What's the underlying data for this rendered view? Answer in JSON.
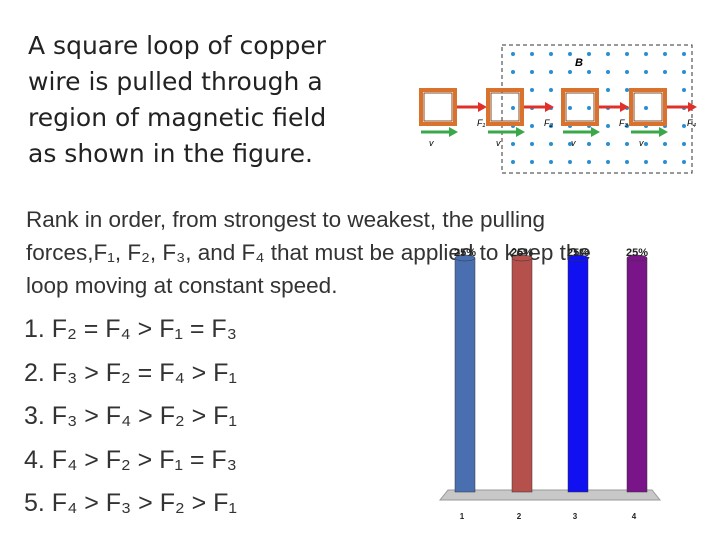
{
  "question": {
    "lines": [
      "A square loop of copper",
      "wire is pulled through a",
      "region of magnetic field",
      "as shown in the figure."
    ]
  },
  "prompt": {
    "lines": [
      "Rank in order, from strongest to weakest, the pulling",
      "forces,F₁, F₂, F₃, and F₄ that must be applied to keep the",
      "loop moving at constant speed."
    ]
  },
  "answers": [
    "1.  F₂ = F₄ > F₁ = F₃",
    "2. F₃ > F₂ = F₄ > F₁",
    "3. F₃ > F₄ > F₂ > F₁",
    "4. F₄ > F₂ > F₁ = F₃",
    "5. F₄ > F₃ > F₂ > F₁"
  ],
  "figure": {
    "field_label": "B",
    "force_labels": [
      "F₁",
      "F₂",
      "F₃",
      "F₄"
    ],
    "velocity_label": "v"
  },
  "chart_data": {
    "type": "bar",
    "categories": [
      "1",
      "2",
      "3",
      "4"
    ],
    "values": [
      25,
      25,
      25,
      25
    ],
    "value_labels": [
      "25%",
      "25%",
      "25%",
      "25%"
    ],
    "colors": [
      "#4a6fb0",
      "#b5504c",
      "#1010f0",
      "#7a1589"
    ],
    "ylim": [
      0,
      25
    ]
  }
}
